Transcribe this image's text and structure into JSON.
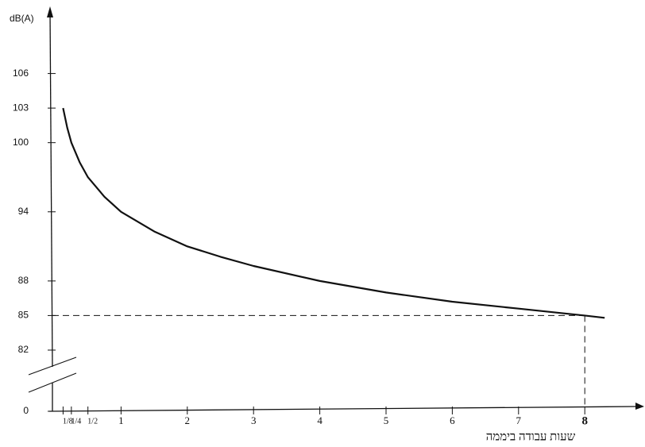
{
  "chart_data": {
    "type": "line",
    "y_label": "dB(A)",
    "x_label": "שעות עבודה ביממה",
    "x": [
      0.125,
      0.1875,
      0.25,
      0.375,
      0.5,
      0.75,
      1,
      1.5,
      2,
      2.5,
      3,
      4,
      5,
      6,
      7,
      8,
      8.3
    ],
    "series": [
      {
        "color": "#111111",
        "values": [
          103,
          101.3,
          100,
          98.3,
          97,
          95.3,
          94,
          92.3,
          91,
          90.1,
          89.3,
          88,
          87,
          86.2,
          85.6,
          85,
          84.8
        ]
      }
    ],
    "xlim": [
      0,
      8.8
    ],
    "xticks": [
      {
        "value": 0.125,
        "label": "1/8"
      },
      {
        "value": 0.25,
        "label": "1/4"
      },
      {
        "value": 0.5,
        "label": "1/2"
      },
      1,
      2,
      3,
      4,
      5,
      6,
      7,
      8
    ],
    "ylim": [
      80,
      111
    ],
    "yticks": [
      0,
      82,
      85,
      88,
      94,
      100,
      103,
      106
    ],
    "y_break": true,
    "reference": {
      "x": 8,
      "y": 85
    }
  }
}
